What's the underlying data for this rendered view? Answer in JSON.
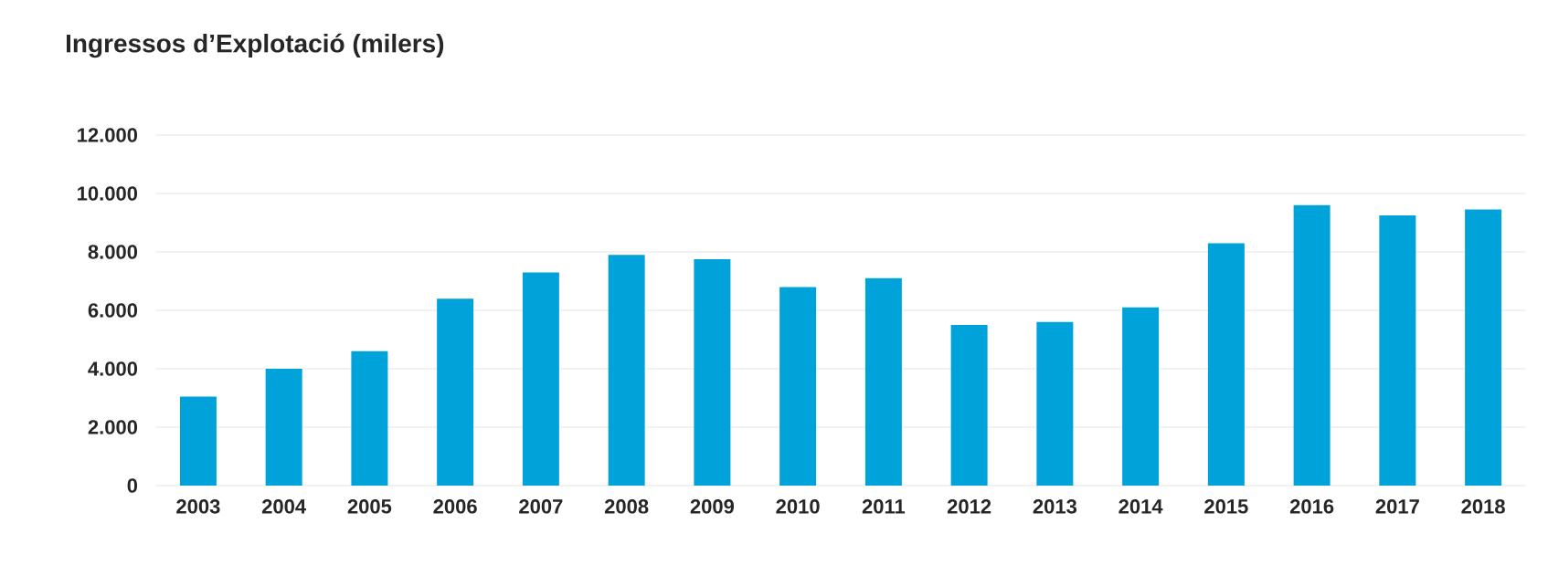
{
  "chart_data": {
    "type": "bar",
    "title": "Ingressos d’Explotació (milers)",
    "categories": [
      "2003",
      "2004",
      "2005",
      "2006",
      "2007",
      "2008",
      "2009",
      "2010",
      "2011",
      "2012",
      "2013",
      "2014",
      "2015",
      "2016",
      "2017",
      "2018"
    ],
    "values": [
      3050,
      4000,
      4600,
      6400,
      7300,
      7900,
      7750,
      6800,
      7100,
      5500,
      5600,
      6100,
      8300,
      9600,
      9250,
      9450
    ],
    "color": "#00a3d9",
    "ylim": [
      0,
      12000
    ],
    "yticks": [
      {
        "value": 0,
        "label": "0"
      },
      {
        "value": 2000,
        "label": "2.000"
      },
      {
        "value": 4000,
        "label": "4.000"
      },
      {
        "value": 6000,
        "label": "6.000"
      },
      {
        "value": 8000,
        "label": "8.000"
      },
      {
        "value": 10000,
        "label": "10.000"
      },
      {
        "value": 12000,
        "label": "12.000"
      }
    ],
    "grid": "y"
  }
}
